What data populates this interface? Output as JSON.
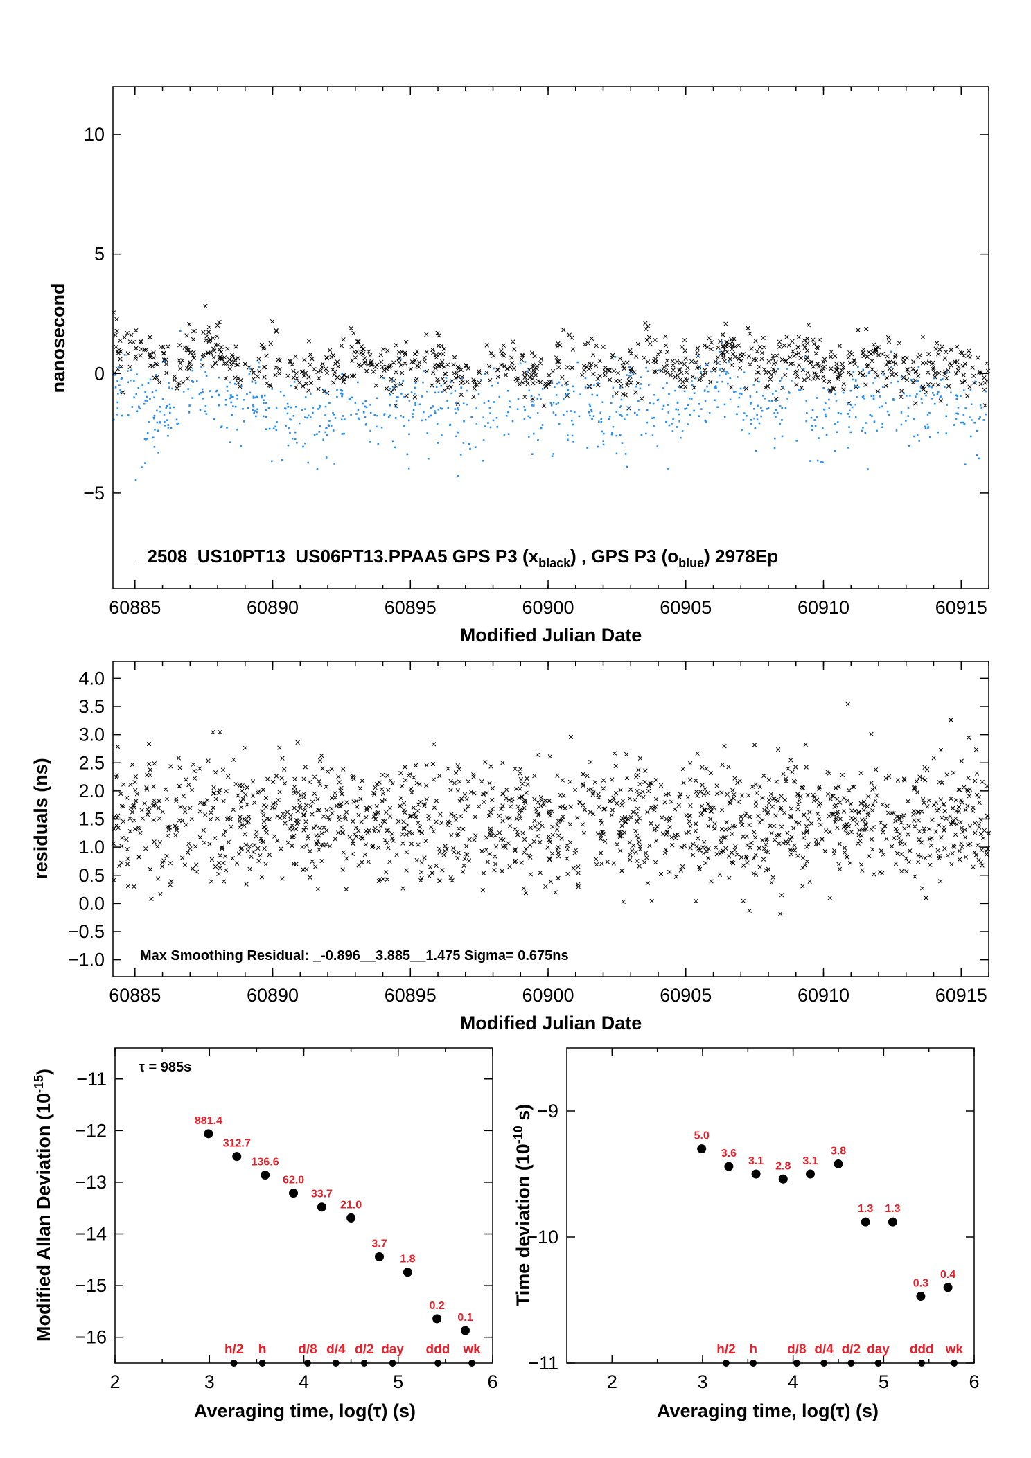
{
  "chart_data": [
    {
      "type": "scatter",
      "id": "phase",
      "xlabel": "Modified Julian Date",
      "ylabel": "nanosecond",
      "xlim": [
        60884.2,
        60916.0
      ],
      "ylim": [
        -9.0,
        12.0
      ],
      "xticks": [
        60885,
        60890,
        60895,
        60900,
        60905,
        60910,
        60915
      ],
      "yticks": [
        -5,
        0,
        5,
        10
      ],
      "caption_main": "_2508_US10PT13_US06PT13.PPAA5     GPS P3 (x",
      "caption_sub1": "black",
      "caption_mid": ") ,  GPS P3 (o",
      "caption_sub2": "blue",
      "caption_end": ")  2978Ep",
      "series": [
        {
          "name": "GPS P3 (xblack)",
          "marker": "x",
          "color": "#000000",
          "trend": [
            [
              60884.2,
              0.9
            ],
            [
              60886,
              0.6
            ],
            [
              60888,
              0.8
            ],
            [
              60890,
              0.1
            ],
            [
              60892,
              0.2
            ],
            [
              60894,
              0.4
            ],
            [
              60896,
              0.1
            ],
            [
              60898,
              -0.1
            ],
            [
              60900,
              0.4
            ],
            [
              60902,
              0.2
            ],
            [
              60904,
              0.5
            ],
            [
              60906,
              0.7
            ],
            [
              60908,
              0.6
            ],
            [
              60910,
              0.3
            ],
            [
              60912,
              0.4
            ],
            [
              60914,
              0.2
            ],
            [
              60916,
              0.1
            ]
          ],
          "spread": 0.8,
          "count": 2978
        },
        {
          "name": "GPS P3 (oblue)",
          "marker": "dot",
          "color": "#2a8ef0",
          "trend": [
            [
              60884.2,
              -1.1
            ],
            [
              60886,
              -1.2
            ],
            [
              60888,
              -0.8
            ],
            [
              60890,
              -1.6
            ],
            [
              60892,
              -1.9
            ],
            [
              60894,
              -1.2
            ],
            [
              60896,
              -1.5
            ],
            [
              60898,
              -1.6
            ],
            [
              60900,
              -1.1
            ],
            [
              60902,
              -1.6
            ],
            [
              60904,
              -1.1
            ],
            [
              60906,
              -1.0
            ],
            [
              60908,
              -1.2
            ],
            [
              60910,
              -1.5
            ],
            [
              60912,
              -1.1
            ],
            [
              60914,
              -1.6
            ],
            [
              60916,
              -1.5
            ]
          ],
          "spread": 1.1,
          "count": 2978
        }
      ]
    },
    {
      "type": "scatter",
      "id": "residuals",
      "xlabel": "Modified Julian Date",
      "ylabel": "residuals (ns)",
      "xlim": [
        60884.2,
        60916.0
      ],
      "ylim": [
        -1.3,
        4.3
      ],
      "xticks": [
        60885,
        60890,
        60895,
        60900,
        60905,
        60910,
        60915
      ],
      "yticks": [
        -1.0,
        -0.5,
        0.0,
        0.5,
        1.0,
        1.5,
        2.0,
        2.5,
        3.0,
        3.5,
        4.0
      ],
      "ytick_labels": [
        "−1.0",
        "−0.5",
        "0.0",
        "0.5",
        "1.0",
        "1.5",
        "2.0",
        "2.5",
        "3.0",
        "3.5",
        "4.0"
      ],
      "annotation": "Max Smoothing Residual: _-0.896__3.885__1.475  Sigma= 0.675ns",
      "series": [
        {
          "marker": "x",
          "color": "#000000",
          "center": 1.475,
          "sigma": 0.675,
          "min": -0.896,
          "max": 3.885,
          "count": 2978
        }
      ]
    },
    {
      "type": "scatter",
      "id": "mdev",
      "xlabel": "Averaging time, log(τ) (s)",
      "ylabel_main": "Modified Allan Deviation (10",
      "ylabel_sup": "-15",
      "ylabel_end": ")",
      "xlim": [
        2,
        6
      ],
      "ylim": [
        -16.5,
        -10.4
      ],
      "xticks": [
        2,
        3,
        4,
        5,
        6
      ],
      "yticks": [
        -16,
        -15,
        -14,
        -13,
        -12,
        -11
      ],
      "ytick_labels": [
        "−16",
        "−15",
        "−14",
        "−13",
        "−12",
        "−11"
      ],
      "tau_note": "τ = 985s",
      "points": [
        {
          "x": 2.99,
          "y": -12.06,
          "label": "881.4"
        },
        {
          "x": 3.29,
          "y": -12.5,
          "label": "312.7"
        },
        {
          "x": 3.59,
          "y": -12.86,
          "label": "136.6"
        },
        {
          "x": 3.89,
          "y": -13.21,
          "label": "62.0"
        },
        {
          "x": 4.19,
          "y": -13.48,
          "label": "33.7"
        },
        {
          "x": 4.5,
          "y": -13.69,
          "label": "21.0"
        },
        {
          "x": 4.8,
          "y": -14.44,
          "label": "3.7"
        },
        {
          "x": 5.1,
          "y": -14.74,
          "label": "1.8"
        },
        {
          "x": 5.41,
          "y": -15.64,
          "label": "0.2"
        },
        {
          "x": 5.71,
          "y": -15.87,
          "label": "0.1"
        }
      ],
      "markers": [
        {
          "x": 3.26,
          "label": "h/2"
        },
        {
          "x": 3.56,
          "label": "h"
        },
        {
          "x": 4.04,
          "label": "d/8"
        },
        {
          "x": 4.34,
          "label": "d/4"
        },
        {
          "x": 4.64,
          "label": "d/2"
        },
        {
          "x": 4.94,
          "label": "day"
        },
        {
          "x": 5.42,
          "label": "ddd"
        },
        {
          "x": 5.78,
          "label": "wk"
        }
      ]
    },
    {
      "type": "scatter",
      "id": "tdev",
      "xlabel": "Averaging time, log(τ) (s)",
      "ylabel_main": "Time deviation (10",
      "ylabel_sup": "-10",
      "ylabel_end": " s)",
      "xlim": [
        1.5,
        6.0
      ],
      "ylim": [
        -11.0,
        -8.5
      ],
      "xticks": [
        2,
        3,
        4,
        5,
        6
      ],
      "yticks": [
        -11,
        -10,
        -9
      ],
      "ytick_labels": [
        "−11",
        "−10",
        "−9"
      ],
      "points": [
        {
          "x": 2.99,
          "y": -9.3,
          "label": "5.0"
        },
        {
          "x": 3.29,
          "y": -9.44,
          "label": "3.6"
        },
        {
          "x": 3.59,
          "y": -9.5,
          "label": "3.1"
        },
        {
          "x": 3.89,
          "y": -9.54,
          "label": "2.8"
        },
        {
          "x": 4.19,
          "y": -9.5,
          "label": "3.1"
        },
        {
          "x": 4.5,
          "y": -9.42,
          "label": "3.8"
        },
        {
          "x": 4.8,
          "y": -9.88,
          "label": "1.3"
        },
        {
          "x": 5.1,
          "y": -9.88,
          "label": "1.3"
        },
        {
          "x": 5.41,
          "y": -10.47,
          "label": "0.3"
        },
        {
          "x": 5.71,
          "y": -10.4,
          "label": "0.4"
        }
      ],
      "markers": [
        {
          "x": 3.26,
          "label": "h/2"
        },
        {
          "x": 3.56,
          "label": "h"
        },
        {
          "x": 4.04,
          "label": "d/8"
        },
        {
          "x": 4.34,
          "label": "d/4"
        },
        {
          "x": 4.64,
          "label": "d/2"
        },
        {
          "x": 4.94,
          "label": "day"
        },
        {
          "x": 5.42,
          "label": "ddd"
        },
        {
          "x": 5.78,
          "label": "wk"
        }
      ]
    }
  ]
}
